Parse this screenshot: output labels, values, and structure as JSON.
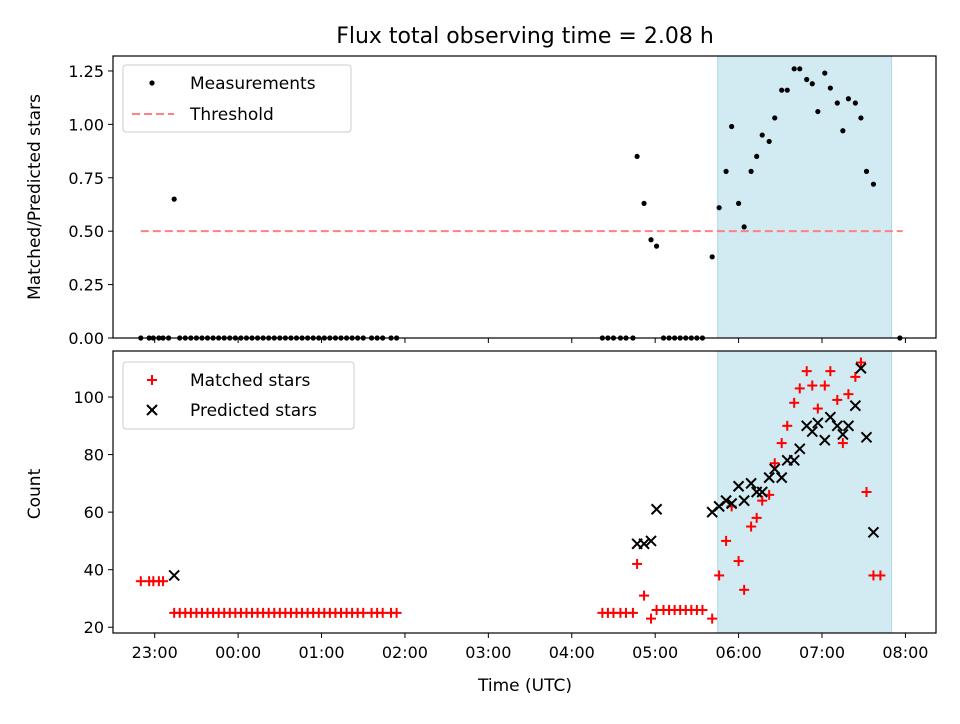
{
  "chart_data": [
    {
      "type": "scatter",
      "title": "Flux total observing time = 2.08 h",
      "ylabel": "Matched/Predicted stars",
      "xlabel": "",
      "xlim": [
        "22:30",
        "08:22"
      ],
      "ylim": [
        0,
        1.32
      ],
      "yticks": [
        "0.00",
        "0.25",
        "0.50",
        "0.75",
        "1.00",
        "1.25"
      ],
      "legend": {
        "position": "top-left",
        "measurements": "Measurements",
        "threshold": "Threshold"
      },
      "shaded_interval": {
        "start": "05:45",
        "end": "07:50",
        "color": "#add8e6"
      },
      "threshold": {
        "value": 0.5,
        "start": "22:50",
        "end": "07:58",
        "color": "#ff8080"
      },
      "series": [
        {
          "name": "Measurements",
          "color": "#000000",
          "points": [
            [
              "22:50",
              0
            ],
            [
              "22:56",
              0
            ],
            [
              "22:59",
              0
            ],
            [
              "23:03",
              0
            ],
            [
              "23:06",
              0
            ],
            [
              "23:10",
              0
            ],
            [
              "23:14",
              0.65
            ],
            [
              "23:18",
              0
            ],
            [
              "23:22",
              0
            ],
            [
              "23:26",
              0
            ],
            [
              "23:30",
              0
            ],
            [
              "23:34",
              0
            ],
            [
              "23:38",
              0
            ],
            [
              "23:42",
              0
            ],
            [
              "23:46",
              0
            ],
            [
              "23:50",
              0
            ],
            [
              "23:54",
              0
            ],
            [
              "23:58",
              0
            ],
            [
              "00:02",
              0
            ],
            [
              "00:06",
              0
            ],
            [
              "00:10",
              0
            ],
            [
              "00:14",
              0
            ],
            [
              "00:18",
              0
            ],
            [
              "00:22",
              0
            ],
            [
              "00:26",
              0
            ],
            [
              "00:30",
              0
            ],
            [
              "00:34",
              0
            ],
            [
              "00:38",
              0
            ],
            [
              "00:42",
              0
            ],
            [
              "00:46",
              0
            ],
            [
              "00:50",
              0
            ],
            [
              "00:54",
              0
            ],
            [
              "00:58",
              0
            ],
            [
              "01:02",
              0
            ],
            [
              "01:06",
              0
            ],
            [
              "01:10",
              0
            ],
            [
              "01:14",
              0
            ],
            [
              "01:18",
              0
            ],
            [
              "01:22",
              0
            ],
            [
              "01:26",
              0
            ],
            [
              "01:30",
              0
            ],
            [
              "01:36",
              0
            ],
            [
              "01:40",
              0
            ],
            [
              "01:44",
              0
            ],
            [
              "01:50",
              0
            ],
            [
              "01:54",
              0
            ],
            [
              "04:22",
              0
            ],
            [
              "04:26",
              0
            ],
            [
              "04:30",
              0
            ],
            [
              "04:35",
              0
            ],
            [
              "04:39",
              0
            ],
            [
              "04:44",
              0
            ],
            [
              "04:47",
              0.85
            ],
            [
              "04:52",
              0.63
            ],
            [
              "04:57",
              0.46
            ],
            [
              "05:01",
              0.43
            ],
            [
              "05:06",
              0
            ],
            [
              "05:10",
              0
            ],
            [
              "05:14",
              0
            ],
            [
              "05:18",
              0
            ],
            [
              "05:22",
              0
            ],
            [
              "05:26",
              0
            ],
            [
              "05:30",
              0
            ],
            [
              "05:34",
              0
            ],
            [
              "05:41",
              0.38
            ],
            [
              "05:46",
              0.61
            ],
            [
              "05:51",
              0.78
            ],
            [
              "05:55",
              0.99
            ],
            [
              "06:00",
              0.63
            ],
            [
              "06:04",
              0.52
            ],
            [
              "06:09",
              0.78
            ],
            [
              "06:13",
              0.85
            ],
            [
              "06:17",
              0.95
            ],
            [
              "06:22",
              0.92
            ],
            [
              "06:26",
              1.03
            ],
            [
              "06:31",
              1.16
            ],
            [
              "06:35",
              1.16
            ],
            [
              "06:40",
              1.26
            ],
            [
              "06:44",
              1.26
            ],
            [
              "06:49",
              1.21
            ],
            [
              "06:53",
              1.19
            ],
            [
              "06:57",
              1.06
            ],
            [
              "07:02",
              1.24
            ],
            [
              "07:06",
              1.17
            ],
            [
              "07:11",
              1.1
            ],
            [
              "07:15",
              0.97
            ],
            [
              "07:19",
              1.12
            ],
            [
              "07:24",
              1.1
            ],
            [
              "07:28",
              1.03
            ],
            [
              "07:32",
              0.78
            ],
            [
              "07:37",
              0.72
            ],
            [
              "07:56",
              0
            ]
          ]
        }
      ]
    },
    {
      "type": "scatter",
      "title": "",
      "ylabel": "Count",
      "xlabel": "Time (UTC)",
      "xlim": [
        "22:30",
        "08:22"
      ],
      "ylim": [
        18,
        116
      ],
      "yticks": [
        "20",
        "40",
        "60",
        "80",
        "100"
      ],
      "xticks": [
        "23:00",
        "00:00",
        "01:00",
        "02:00",
        "03:00",
        "04:00",
        "05:00",
        "06:00",
        "07:00",
        "08:00"
      ],
      "legend": {
        "position": "top-left",
        "matched": "Matched stars",
        "predicted": "Predicted stars"
      },
      "shaded_interval": {
        "start": "05:45",
        "end": "07:50",
        "color": "#add8e6"
      },
      "series": [
        {
          "name": "Matched stars",
          "color": "#ff0000",
          "marker": "+",
          "points": [
            [
              "22:50",
              36
            ],
            [
              "22:56",
              36
            ],
            [
              "22:59",
              36
            ],
            [
              "23:03",
              36
            ],
            [
              "23:06",
              36
            ],
            [
              "23:14",
              25
            ],
            [
              "23:18",
              25
            ],
            [
              "23:22",
              25
            ],
            [
              "23:26",
              25
            ],
            [
              "23:30",
              25
            ],
            [
              "23:34",
              25
            ],
            [
              "23:38",
              25
            ],
            [
              "23:42",
              25
            ],
            [
              "23:46",
              25
            ],
            [
              "23:50",
              25
            ],
            [
              "23:54",
              25
            ],
            [
              "23:58",
              25
            ],
            [
              "00:02",
              25
            ],
            [
              "00:06",
              25
            ],
            [
              "00:10",
              25
            ],
            [
              "00:14",
              25
            ],
            [
              "00:18",
              25
            ],
            [
              "00:22",
              25
            ],
            [
              "00:26",
              25
            ],
            [
              "00:30",
              25
            ],
            [
              "00:34",
              25
            ],
            [
              "00:38",
              25
            ],
            [
              "00:42",
              25
            ],
            [
              "00:46",
              25
            ],
            [
              "00:50",
              25
            ],
            [
              "00:54",
              25
            ],
            [
              "00:58",
              25
            ],
            [
              "01:02",
              25
            ],
            [
              "01:06",
              25
            ],
            [
              "01:10",
              25
            ],
            [
              "01:14",
              25
            ],
            [
              "01:18",
              25
            ],
            [
              "01:22",
              25
            ],
            [
              "01:26",
              25
            ],
            [
              "01:30",
              25
            ],
            [
              "01:36",
              25
            ],
            [
              "01:40",
              25
            ],
            [
              "01:44",
              25
            ],
            [
              "01:50",
              25
            ],
            [
              "01:54",
              25
            ],
            [
              "04:22",
              25
            ],
            [
              "04:26",
              25
            ],
            [
              "04:30",
              25
            ],
            [
              "04:35",
              25
            ],
            [
              "04:39",
              25
            ],
            [
              "04:44",
              25
            ],
            [
              "04:47",
              42
            ],
            [
              "04:52",
              31
            ],
            [
              "04:57",
              23
            ],
            [
              "05:01",
              26
            ],
            [
              "05:06",
              26
            ],
            [
              "05:10",
              26
            ],
            [
              "05:14",
              26
            ],
            [
              "05:18",
              26
            ],
            [
              "05:22",
              26
            ],
            [
              "05:26",
              26
            ],
            [
              "05:30",
              26
            ],
            [
              "05:34",
              26
            ],
            [
              "05:41",
              23
            ],
            [
              "05:46",
              38
            ],
            [
              "05:51",
              50
            ],
            [
              "05:55",
              62
            ],
            [
              "06:00",
              43
            ],
            [
              "06:04",
              33
            ],
            [
              "06:09",
              55
            ],
            [
              "06:13",
              58
            ],
            [
              "06:17",
              64
            ],
            [
              "06:22",
              66
            ],
            [
              "06:26",
              77
            ],
            [
              "06:31",
              84
            ],
            [
              "06:35",
              90
            ],
            [
              "06:40",
              98
            ],
            [
              "06:44",
              103
            ],
            [
              "06:49",
              109
            ],
            [
              "06:53",
              104
            ],
            [
              "06:57",
              96
            ],
            [
              "07:02",
              104
            ],
            [
              "07:06",
              109
            ],
            [
              "07:11",
              99
            ],
            [
              "07:15",
              84
            ],
            [
              "07:19",
              101
            ],
            [
              "07:24",
              107
            ],
            [
              "07:28",
              112
            ],
            [
              "07:32",
              67
            ],
            [
              "07:37",
              38
            ],
            [
              "07:42",
              38
            ]
          ]
        },
        {
          "name": "Predicted stars",
          "color": "#000000",
          "marker": "x",
          "points": [
            [
              "23:14",
              38
            ],
            [
              "04:47",
              49
            ],
            [
              "04:52",
              49
            ],
            [
              "04:57",
              50
            ],
            [
              "05:01",
              61
            ],
            [
              "05:41",
              60
            ],
            [
              "05:46",
              62
            ],
            [
              "05:51",
              64
            ],
            [
              "05:55",
              63
            ],
            [
              "06:00",
              69
            ],
            [
              "06:04",
              64
            ],
            [
              "06:09",
              70
            ],
            [
              "06:13",
              67
            ],
            [
              "06:17",
              67
            ],
            [
              "06:22",
              72
            ],
            [
              "06:26",
              75
            ],
            [
              "06:31",
              72
            ],
            [
              "06:35",
              78
            ],
            [
              "06:40",
              78
            ],
            [
              "06:44",
              82
            ],
            [
              "06:49",
              90
            ],
            [
              "06:53",
              88
            ],
            [
              "06:57",
              91
            ],
            [
              "07:02",
              85
            ],
            [
              "07:06",
              93
            ],
            [
              "07:11",
              90
            ],
            [
              "07:15",
              87
            ],
            [
              "07:19",
              90
            ],
            [
              "07:24",
              97
            ],
            [
              "07:28",
              110
            ],
            [
              "07:32",
              86
            ],
            [
              "07:37",
              53
            ]
          ]
        }
      ]
    }
  ]
}
